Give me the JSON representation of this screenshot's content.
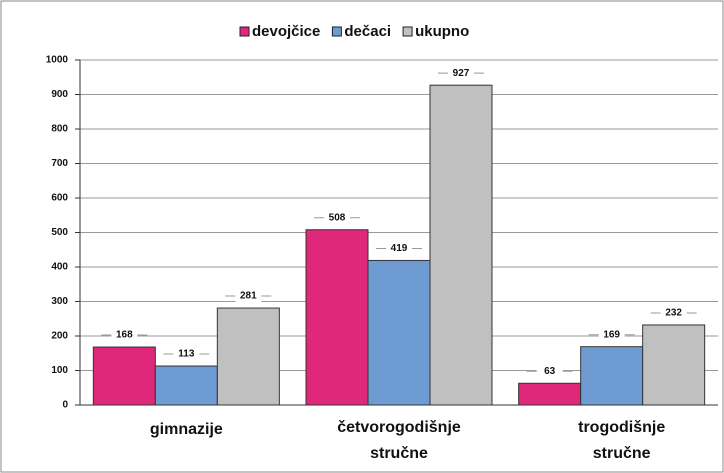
{
  "chart_data": {
    "type": "bar",
    "categories": [
      "gimnazije",
      "četvorogodišnje stručne",
      "trogodišnje stručne"
    ],
    "series": [
      {
        "name": "devojčice",
        "color": "#e0287a",
        "values": [
          168,
          508,
          63
        ]
      },
      {
        "name": "dečaci",
        "color": "#6f9bd3",
        "values": [
          113,
          419,
          169
        ]
      },
      {
        "name": "ukupno",
        "color": "#c0c0c0",
        "values": [
          281,
          927,
          232
        ]
      }
    ],
    "ylim": [
      0,
      1000
    ],
    "yticks": [
      0,
      100,
      200,
      300,
      400,
      500,
      600,
      700,
      800,
      900,
      1000
    ],
    "grid": true
  }
}
